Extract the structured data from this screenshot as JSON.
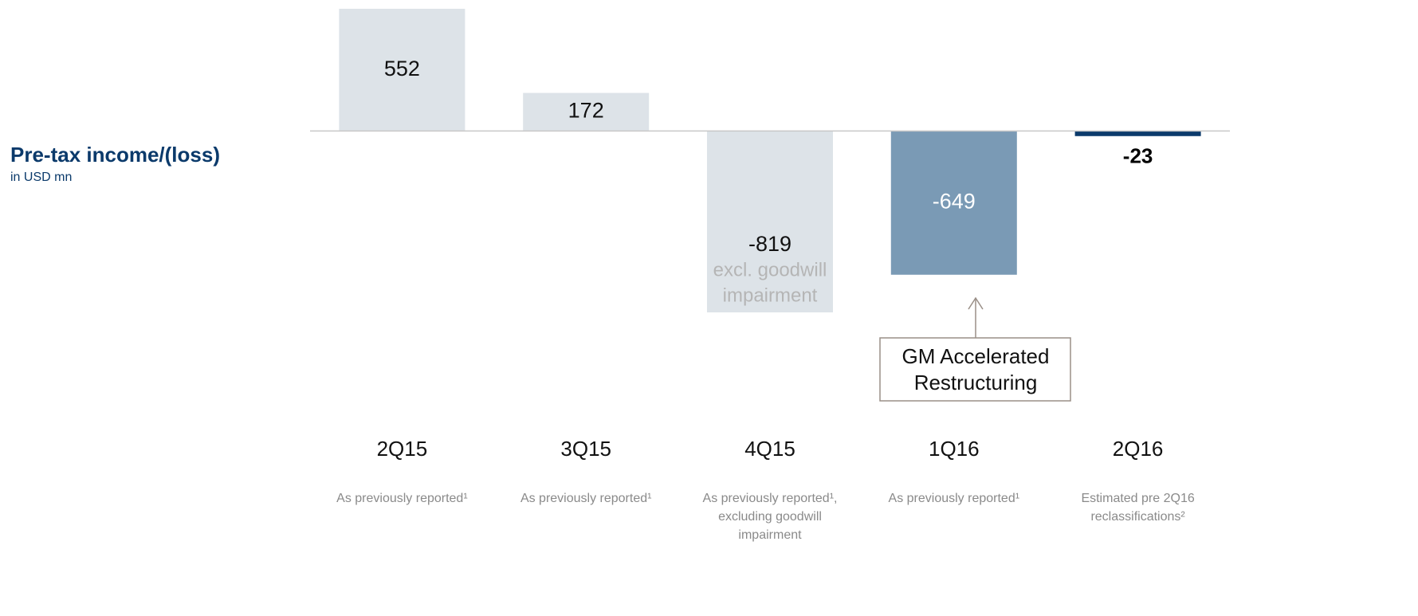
{
  "chart_data": {
    "type": "bar",
    "title": "Pre-tax income/(loss)",
    "subtitle": "in USD mn",
    "categories": [
      "2Q15",
      "3Q15",
      "4Q15",
      "1Q16",
      "2Q16"
    ],
    "values": [
      552,
      172,
      -819,
      -649,
      -23
    ],
    "colors": [
      "#dde3e8",
      "#dde3e8",
      "#dde3e8",
      "#7a9ab5",
      "#0b3a6b"
    ],
    "value_sublabels": [
      null,
      null,
      [
        "excl. goodwill",
        "impairment"
      ],
      null,
      null
    ],
    "notes": [
      [
        "As previously reported¹"
      ],
      [
        "As previously reported¹"
      ],
      [
        "As previously reported¹,",
        "excluding goodwill",
        "impairment"
      ],
      [
        "As previously reported¹"
      ],
      [
        "Estimated pre 2Q16",
        "reclassifications²"
      ]
    ],
    "annotation": [
      "GM Accelerated",
      "Restructuring"
    ]
  }
}
